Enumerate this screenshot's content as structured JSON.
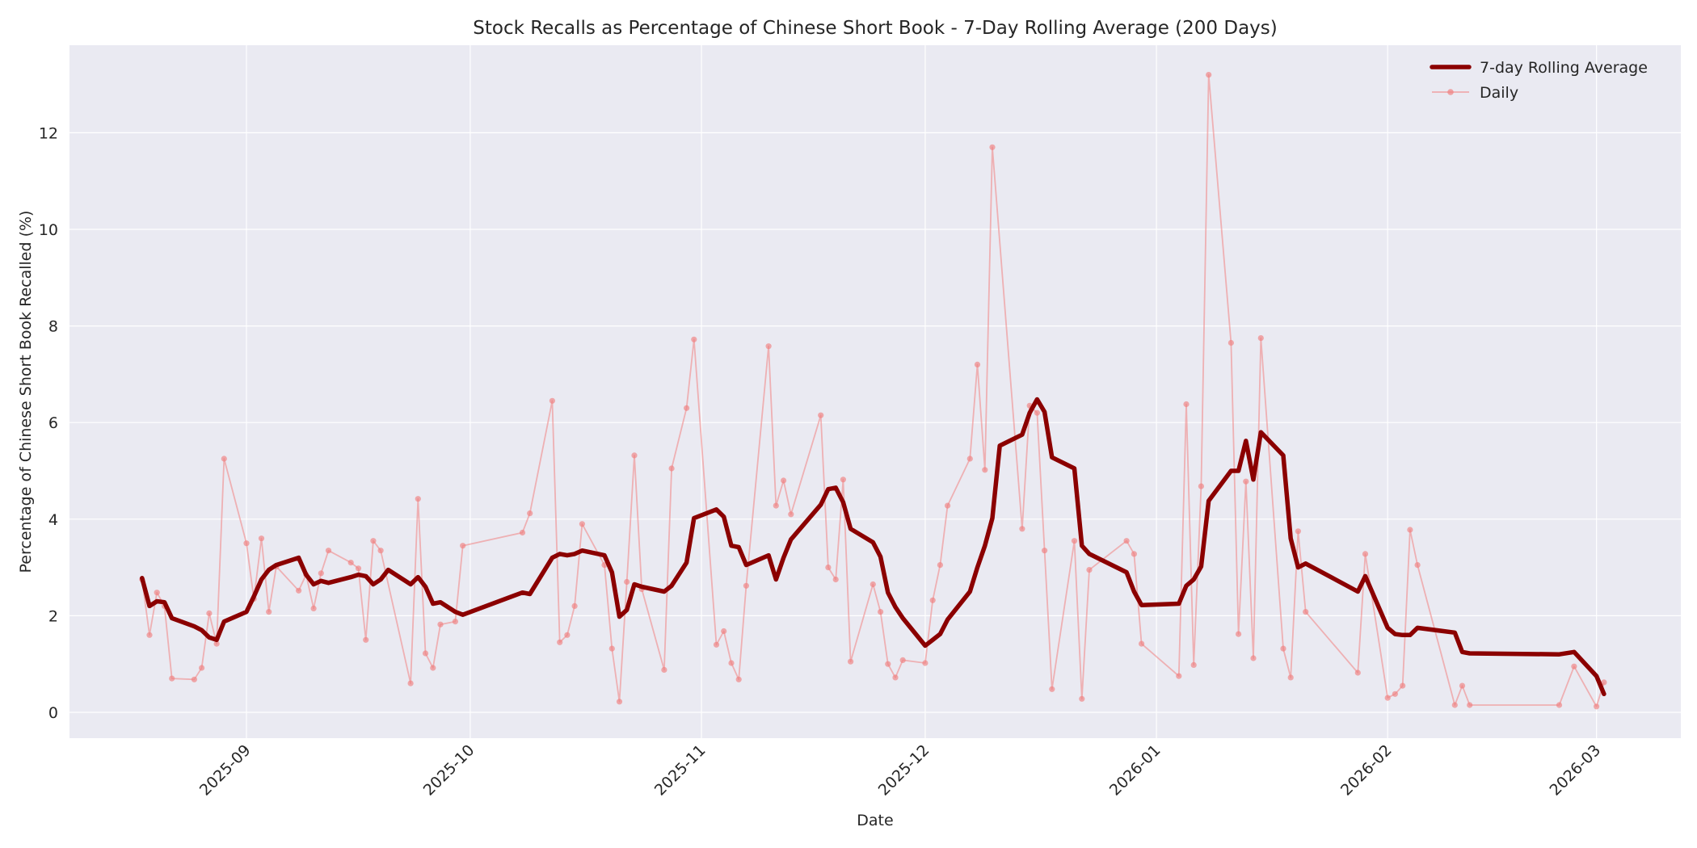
{
  "chart_data": {
    "type": "line",
    "title": "Stock Recalls as Percentage of Chinese Short Book - 7-Day Rolling Average (200 Days)",
    "xlabel": "Date",
    "ylabel": "Percentage of Chinese Short Book Recalled (%)",
    "ylim": [
      -0.5,
      13.7
    ],
    "yticks": [
      0,
      2,
      4,
      6,
      8,
      10,
      12
    ],
    "xticks": [
      "2025-09",
      "2025-10",
      "2025-11",
      "2025-12",
      "2026-01",
      "2026-02",
      "2026-03"
    ],
    "xrange": [
      "2025-08-10",
      "2026-03-12"
    ],
    "grid": true,
    "legend_position": "upper right",
    "colors": {
      "rolling": "#8b0000",
      "daily": "#f08080",
      "background": "#eaeaf2",
      "grid": "#ffffff"
    },
    "series": [
      {
        "name": "7-day Rolling Average",
        "style": "thick-line",
        "points": [
          [
            "2025-08-18",
            2.78
          ],
          [
            "2025-08-19",
            2.2
          ],
          [
            "2025-08-20",
            2.3
          ],
          [
            "2025-08-21",
            2.28
          ],
          [
            "2025-08-22",
            1.95
          ],
          [
            "2025-08-25",
            1.78
          ],
          [
            "2025-08-26",
            1.7
          ],
          [
            "2025-08-27",
            1.55
          ],
          [
            "2025-08-28",
            1.5
          ],
          [
            "2025-08-29",
            1.88
          ],
          [
            "2025-09-01",
            2.08
          ],
          [
            "2025-09-02",
            2.4
          ],
          [
            "2025-09-03",
            2.75
          ],
          [
            "2025-09-04",
            2.95
          ],
          [
            "2025-09-05",
            3.05
          ],
          [
            "2025-09-08",
            3.2
          ],
          [
            "2025-09-09",
            2.85
          ],
          [
            "2025-09-10",
            2.65
          ],
          [
            "2025-09-11",
            2.72
          ],
          [
            "2025-09-12",
            2.68
          ],
          [
            "2025-09-15",
            2.8
          ],
          [
            "2025-09-16",
            2.85
          ],
          [
            "2025-09-17",
            2.82
          ],
          [
            "2025-09-18",
            2.65
          ],
          [
            "2025-09-19",
            2.75
          ],
          [
            "2025-09-20",
            2.95
          ],
          [
            "2025-09-23",
            2.65
          ],
          [
            "2025-09-24",
            2.8
          ],
          [
            "2025-09-25",
            2.6
          ],
          [
            "2025-09-26",
            2.25
          ],
          [
            "2025-09-27",
            2.28
          ],
          [
            "2025-09-29",
            2.08
          ],
          [
            "2025-09-30",
            2.02
          ],
          [
            "2025-10-08",
            2.48
          ],
          [
            "2025-10-09",
            2.45
          ],
          [
            "2025-10-12",
            3.2
          ],
          [
            "2025-10-13",
            3.28
          ],
          [
            "2025-10-14",
            3.25
          ],
          [
            "2025-10-15",
            3.28
          ],
          [
            "2025-10-16",
            3.35
          ],
          [
            "2025-10-19",
            3.25
          ],
          [
            "2025-10-20",
            2.9
          ],
          [
            "2025-10-21",
            1.98
          ],
          [
            "2025-10-22",
            2.12
          ],
          [
            "2025-10-23",
            2.65
          ],
          [
            "2025-10-24",
            2.6
          ],
          [
            "2025-10-27",
            2.5
          ],
          [
            "2025-10-28",
            2.62
          ],
          [
            "2025-10-30",
            3.1
          ],
          [
            "2025-10-31",
            4.02
          ],
          [
            "2025-11-03",
            4.2
          ],
          [
            "2025-11-04",
            4.05
          ],
          [
            "2025-11-05",
            3.45
          ],
          [
            "2025-11-06",
            3.42
          ],
          [
            "2025-11-07",
            3.05
          ],
          [
            "2025-11-10",
            3.25
          ],
          [
            "2025-11-11",
            2.75
          ],
          [
            "2025-11-12",
            3.2
          ],
          [
            "2025-11-13",
            3.58
          ],
          [
            "2025-11-17",
            4.3
          ],
          [
            "2025-11-18",
            4.62
          ],
          [
            "2025-11-19",
            4.65
          ],
          [
            "2025-11-20",
            4.35
          ],
          [
            "2025-11-21",
            3.8
          ],
          [
            "2025-11-24",
            3.52
          ],
          [
            "2025-11-25",
            3.22
          ],
          [
            "2025-11-26",
            2.48
          ],
          [
            "2025-11-27",
            2.18
          ],
          [
            "2025-11-28",
            1.95
          ],
          [
            "2025-12-01",
            1.38
          ],
          [
            "2025-12-02",
            1.5
          ],
          [
            "2025-12-03",
            1.62
          ],
          [
            "2025-12-04",
            1.92
          ],
          [
            "2025-12-07",
            2.5
          ],
          [
            "2025-12-08",
            3.0
          ],
          [
            "2025-12-09",
            3.45
          ],
          [
            "2025-12-10",
            4.02
          ],
          [
            "2025-12-11",
            5.52
          ],
          [
            "2025-12-14",
            5.75
          ],
          [
            "2025-12-15",
            6.2
          ],
          [
            "2025-12-16",
            6.48
          ],
          [
            "2025-12-17",
            6.22
          ],
          [
            "2025-12-18",
            5.28
          ],
          [
            "2025-12-21",
            5.05
          ],
          [
            "2025-12-22",
            3.45
          ],
          [
            "2025-12-23",
            3.28
          ],
          [
            "2025-12-28",
            2.9
          ],
          [
            "2025-12-29",
            2.5
          ],
          [
            "2025-12-30",
            2.22
          ],
          [
            "2026-01-04",
            2.25
          ],
          [
            "2026-01-05",
            2.62
          ],
          [
            "2026-01-06",
            2.75
          ],
          [
            "2026-01-07",
            3.02
          ],
          [
            "2026-01-08",
            4.38
          ],
          [
            "2026-01-11",
            5.0
          ],
          [
            "2026-01-12",
            5.0
          ],
          [
            "2026-01-13",
            5.62
          ],
          [
            "2026-01-14",
            4.82
          ],
          [
            "2026-01-15",
            5.8
          ],
          [
            "2026-01-18",
            5.32
          ],
          [
            "2026-01-19",
            3.6
          ],
          [
            "2026-01-20",
            3.0
          ],
          [
            "2026-01-21",
            3.08
          ],
          [
            "2026-01-28",
            2.5
          ],
          [
            "2026-01-29",
            2.82
          ],
          [
            "2026-02-01",
            1.75
          ],
          [
            "2026-02-02",
            1.62
          ],
          [
            "2026-02-03",
            1.6
          ],
          [
            "2026-02-04",
            1.6
          ],
          [
            "2026-02-05",
            1.75
          ],
          [
            "2026-02-10",
            1.65
          ],
          [
            "2026-02-11",
            1.25
          ],
          [
            "2026-02-12",
            1.22
          ],
          [
            "2026-02-24",
            1.2
          ],
          [
            "2026-02-26",
            1.25
          ],
          [
            "2026-03-01",
            0.75
          ],
          [
            "2026-03-02",
            0.38
          ]
        ]
      },
      {
        "name": "Daily",
        "style": "thin-line-with-markers",
        "points": [
          [
            "2025-08-18",
            2.75
          ],
          [
            "2025-08-19",
            1.6
          ],
          [
            "2025-08-20",
            2.48
          ],
          [
            "2025-08-21",
            2.2
          ],
          [
            "2025-08-22",
            0.7
          ],
          [
            "2025-08-25",
            0.68
          ],
          [
            "2025-08-26",
            0.92
          ],
          [
            "2025-08-27",
            2.05
          ],
          [
            "2025-08-28",
            1.42
          ],
          [
            "2025-08-29",
            5.25
          ],
          [
            "2025-09-01",
            3.5
          ],
          [
            "2025-09-02",
            2.35
          ],
          [
            "2025-09-03",
            3.6
          ],
          [
            "2025-09-04",
            2.08
          ],
          [
            "2025-09-05",
            3.02
          ],
          [
            "2025-09-08",
            2.52
          ],
          [
            "2025-09-09",
            2.85
          ],
          [
            "2025-09-10",
            2.15
          ],
          [
            "2025-09-11",
            2.88
          ],
          [
            "2025-09-12",
            3.35
          ],
          [
            "2025-09-15",
            3.1
          ],
          [
            "2025-09-16",
            2.98
          ],
          [
            "2025-09-17",
            1.5
          ],
          [
            "2025-09-18",
            3.55
          ],
          [
            "2025-09-19",
            3.35
          ],
          [
            "2025-09-23",
            0.6
          ],
          [
            "2025-09-24",
            4.42
          ],
          [
            "2025-09-25",
            1.22
          ],
          [
            "2025-09-26",
            0.92
          ],
          [
            "2025-09-27",
            1.82
          ],
          [
            "2025-09-29",
            1.88
          ],
          [
            "2025-09-30",
            3.45
          ],
          [
            "2025-10-08",
            3.72
          ],
          [
            "2025-10-09",
            4.12
          ],
          [
            "2025-10-12",
            6.45
          ],
          [
            "2025-10-13",
            1.45
          ],
          [
            "2025-10-14",
            1.6
          ],
          [
            "2025-10-15",
            2.2
          ],
          [
            "2025-10-16",
            3.9
          ],
          [
            "2025-10-19",
            3.05
          ],
          [
            "2025-10-20",
            1.32
          ],
          [
            "2025-10-21",
            0.22
          ],
          [
            "2025-10-22",
            2.7
          ],
          [
            "2025-10-23",
            5.32
          ],
          [
            "2025-10-24",
            2.55
          ],
          [
            "2025-10-27",
            0.88
          ],
          [
            "2025-10-28",
            5.05
          ],
          [
            "2025-10-30",
            6.3
          ],
          [
            "2025-10-31",
            7.72
          ],
          [
            "2025-11-03",
            1.4
          ],
          [
            "2025-11-04",
            1.68
          ],
          [
            "2025-11-05",
            1.02
          ],
          [
            "2025-11-06",
            0.68
          ],
          [
            "2025-11-07",
            2.62
          ],
          [
            "2025-11-10",
            7.58
          ],
          [
            "2025-11-11",
            4.28
          ],
          [
            "2025-11-12",
            4.8
          ],
          [
            "2025-11-13",
            4.1
          ],
          [
            "2025-11-17",
            6.15
          ],
          [
            "2025-11-18",
            3.0
          ],
          [
            "2025-11-19",
            2.75
          ],
          [
            "2025-11-20",
            4.82
          ],
          [
            "2025-11-21",
            1.05
          ],
          [
            "2025-11-24",
            2.65
          ],
          [
            "2025-11-25",
            2.08
          ],
          [
            "2025-11-26",
            1.0
          ],
          [
            "2025-11-27",
            0.72
          ],
          [
            "2025-11-28",
            1.08
          ],
          [
            "2025-12-01",
            1.02
          ],
          [
            "2025-12-02",
            2.32
          ],
          [
            "2025-12-03",
            3.05
          ],
          [
            "2025-12-04",
            4.28
          ],
          [
            "2025-12-07",
            5.25
          ],
          [
            "2025-12-08",
            7.2
          ],
          [
            "2025-12-09",
            5.02
          ],
          [
            "2025-12-10",
            11.7
          ],
          [
            "2025-12-14",
            3.8
          ],
          [
            "2025-12-15",
            6.35
          ],
          [
            "2025-12-16",
            6.2
          ],
          [
            "2025-12-17",
            3.35
          ],
          [
            "2025-12-18",
            0.48
          ],
          [
            "2025-12-21",
            3.55
          ],
          [
            "2025-12-22",
            0.28
          ],
          [
            "2025-12-23",
            2.95
          ],
          [
            "2025-12-28",
            3.55
          ],
          [
            "2025-12-29",
            3.28
          ],
          [
            "2025-12-30",
            1.42
          ],
          [
            "2026-01-04",
            0.75
          ],
          [
            "2026-01-05",
            6.38
          ],
          [
            "2026-01-06",
            0.98
          ],
          [
            "2026-01-07",
            4.68
          ],
          [
            "2026-01-08",
            13.2
          ],
          [
            "2026-01-11",
            7.65
          ],
          [
            "2026-01-12",
            1.62
          ],
          [
            "2026-01-13",
            4.78
          ],
          [
            "2026-01-14",
            1.12
          ],
          [
            "2026-01-15",
            7.75
          ],
          [
            "2026-01-18",
            1.32
          ],
          [
            "2026-01-19",
            0.72
          ],
          [
            "2026-01-20",
            3.75
          ],
          [
            "2026-01-21",
            2.08
          ],
          [
            "2026-01-28",
            0.82
          ],
          [
            "2026-01-29",
            3.28
          ],
          [
            "2026-02-01",
            0.3
          ],
          [
            "2026-02-02",
            0.38
          ],
          [
            "2026-02-03",
            0.55
          ],
          [
            "2026-02-04",
            3.78
          ],
          [
            "2026-02-05",
            3.05
          ],
          [
            "2026-02-10",
            0.15
          ],
          [
            "2026-02-11",
            0.55
          ],
          [
            "2026-02-12",
            0.15
          ],
          [
            "2026-02-24",
            0.15
          ],
          [
            "2026-02-26",
            0.95
          ],
          [
            "2026-03-01",
            0.12
          ],
          [
            "2026-03-02",
            0.62
          ]
        ]
      }
    ]
  },
  "legend": {
    "items": [
      "7-day Rolling Average",
      "Daily"
    ]
  }
}
